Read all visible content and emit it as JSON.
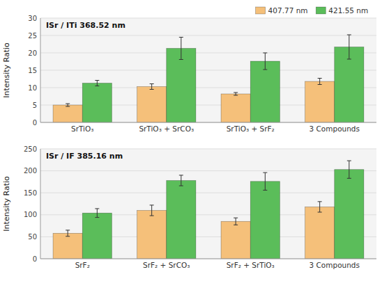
{
  "chart_data": [
    {
      "type": "bar",
      "annotation": "ISr / ITi 368.52 nm",
      "ylabel": "Intensity Ratio",
      "categories": [
        "SrTiO₃",
        "SrTiO₃ + SrCO₃",
        "SrTiO₃ + SrF₂",
        "3 Compounds"
      ],
      "series": [
        {
          "name": "407.77 nm",
          "color": "#F5C07A",
          "values": [
            5.0,
            10.3,
            8.2,
            11.8
          ],
          "errors": [
            0.4,
            0.8,
            0.4,
            0.9
          ]
        },
        {
          "name": "421.55 nm",
          "color": "#5BBD5A",
          "values": [
            11.3,
            21.3,
            17.6,
            21.7
          ],
          "errors": [
            0.8,
            3.2,
            2.4,
            3.5
          ]
        }
      ],
      "ylim": [
        0,
        30
      ],
      "yticks": [
        0,
        5,
        10,
        15,
        20,
        25,
        30
      ],
      "grid": true,
      "legend": "upper right"
    },
    {
      "type": "bar",
      "annotation": "ISr / IF 385.16 nm",
      "ylabel": "Intensity Ratio",
      "categories": [
        "SrF₂",
        "SrF₂ + SrCO₃",
        "SrF₂ + SrTiO₃",
        "3 Compounds"
      ],
      "series": [
        {
          "color": "#F5C07A",
          "values": [
            58,
            110,
            85,
            118
          ],
          "errors": [
            7,
            12,
            8,
            12
          ]
        },
        {
          "color": "#5BBD5A",
          "values": [
            104,
            178,
            176,
            203
          ],
          "errors": [
            10,
            12,
            20,
            20
          ]
        }
      ],
      "ylim": [
        0,
        250
      ],
      "yticks": [
        0,
        50,
        100,
        150,
        200,
        250
      ],
      "grid": true
    }
  ]
}
